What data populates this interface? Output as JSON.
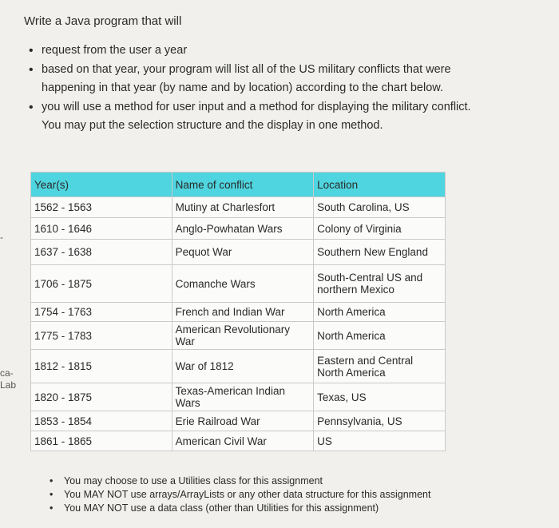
{
  "title": "Write a Java program that will",
  "bullets": [
    "request from the user a year",
    "based on that year, your program will list all of the US military conflicts that were happening in that year (by name and by location) according to the chart below.",
    "you will use a method for user input and a method for displaying the military conflict. You may put the selection structure and the display in one method."
  ],
  "table": {
    "header": [
      "Year(s)",
      "Name of conflict",
      "Location"
    ],
    "rows": [
      [
        "1562 - 1563",
        "Mutiny at Charlesfort",
        "South Carolina, US"
      ],
      [
        "1610 - 1646",
        "Anglo-Powhatan Wars",
        "Colony of Virginia"
      ],
      [
        "1637 - 1638",
        "Pequot War",
        "Southern New England"
      ],
      [
        "1706 - 1875",
        "Comanche Wars",
        "South-Central US and northern Mexico"
      ],
      [
        "1754 - 1763",
        "French and Indian War",
        "North America"
      ],
      [
        "1775 - 1783",
        "American Revolutionary War",
        "North America"
      ],
      [
        "1812 - 1815",
        "War of 1812",
        "Eastern and Central North America"
      ],
      [
        "1820 - 1875",
        "Texas-American Indian Wars",
        "Texas, US"
      ],
      [
        "1853 - 1854",
        "Erie Railroad War",
        "Pennsylvania, US"
      ],
      [
        "1861 - 1865",
        "American Civil War",
        "US"
      ]
    ]
  },
  "footer": [
    "You may choose to use a Utilities class for this assignment",
    "You MAY NOT use arrays/ArrayLists or any other data structure for this assignment",
    "You MAY NOT use a data class (other than Utilities for this assignment)"
  ],
  "side_fragments": [
    "-",
    "ca-",
    "Lab"
  ]
}
